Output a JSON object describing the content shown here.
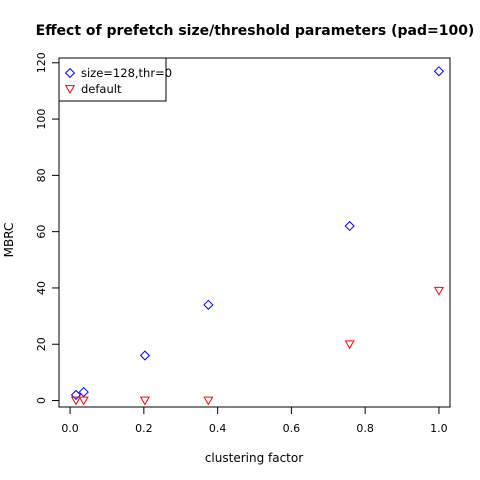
{
  "chart_data": {
    "type": "scatter",
    "title": "Effect of prefetch size/threshold parameters (pad=100)",
    "xlabel": "clustering factor",
    "ylabel": "MBRC",
    "xlim": [
      -0.03,
      1.03
    ],
    "ylim": [
      -2.3,
      121.7
    ],
    "x_ticks": [
      "0.0",
      "0.2",
      "0.4",
      "0.6",
      "0.8",
      "1.0"
    ],
    "y_ticks": [
      "0",
      "20",
      "40",
      "60",
      "80",
      "100",
      "120"
    ],
    "grid": false,
    "legend_position": "top-left",
    "series": [
      {
        "name": "size=128,thr=0",
        "marker": "diamond",
        "color": "#0000ff",
        "points": [
          {
            "x": 0.016,
            "y": 2
          },
          {
            "x": 0.037,
            "y": 3
          },
          {
            "x": 0.203,
            "y": 16
          },
          {
            "x": 0.375,
            "y": 34
          },
          {
            "x": 0.758,
            "y": 62
          },
          {
            "x": 1.0,
            "y": 117
          }
        ]
      },
      {
        "name": "default",
        "marker": "triangle-down",
        "color": "#ff0000",
        "points": [
          {
            "x": 0.016,
            "y": 0
          },
          {
            "x": 0.037,
            "y": 0
          },
          {
            "x": 0.203,
            "y": 0
          },
          {
            "x": 0.375,
            "y": 0
          },
          {
            "x": 0.758,
            "y": 20
          },
          {
            "x": 1.0,
            "y": 39
          }
        ]
      }
    ]
  }
}
